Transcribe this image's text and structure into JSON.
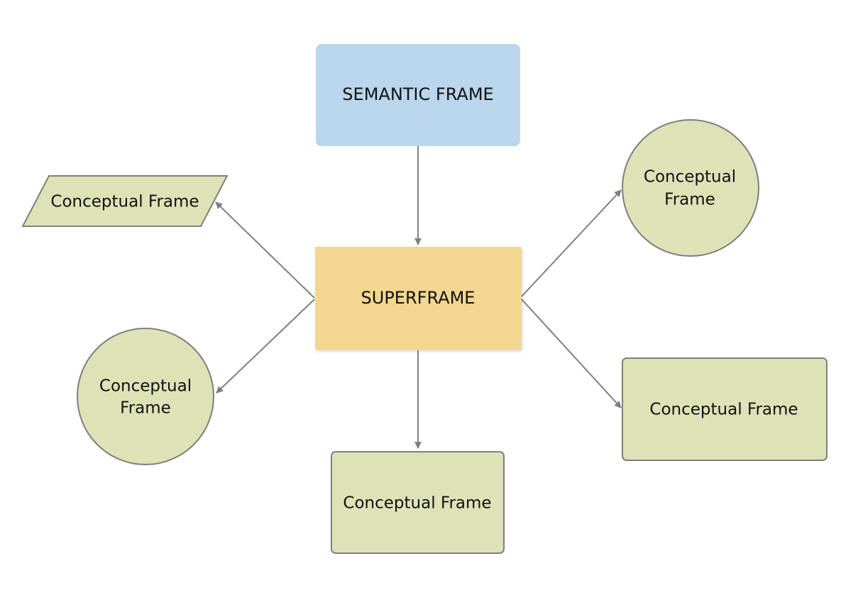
{
  "diagram": {
    "colors": {
      "semantic_fill": "#bad6ec",
      "superframe_fill": "#f3d68f",
      "conceptual_fill": "#dde3b6",
      "conceptual_stroke": "#7f7f7f",
      "edge": "#808080",
      "text": "#111111"
    },
    "nodes": {
      "semantic": {
        "label": "SEMANTIC FRAME"
      },
      "superframe": {
        "label": "SUPERFRAME"
      },
      "conceptual_parallelogram": {
        "label": "Conceptual Frame"
      },
      "conceptual_circle_left": {
        "line1": "Conceptual",
        "line2": "Frame"
      },
      "conceptual_circle_right": {
        "line1": "Conceptual",
        "line2": "Frame"
      },
      "conceptual_rect_bottom": {
        "label": "Conceptual Frame"
      },
      "conceptual_rect_right": {
        "label": "Conceptual Frame"
      }
    }
  }
}
